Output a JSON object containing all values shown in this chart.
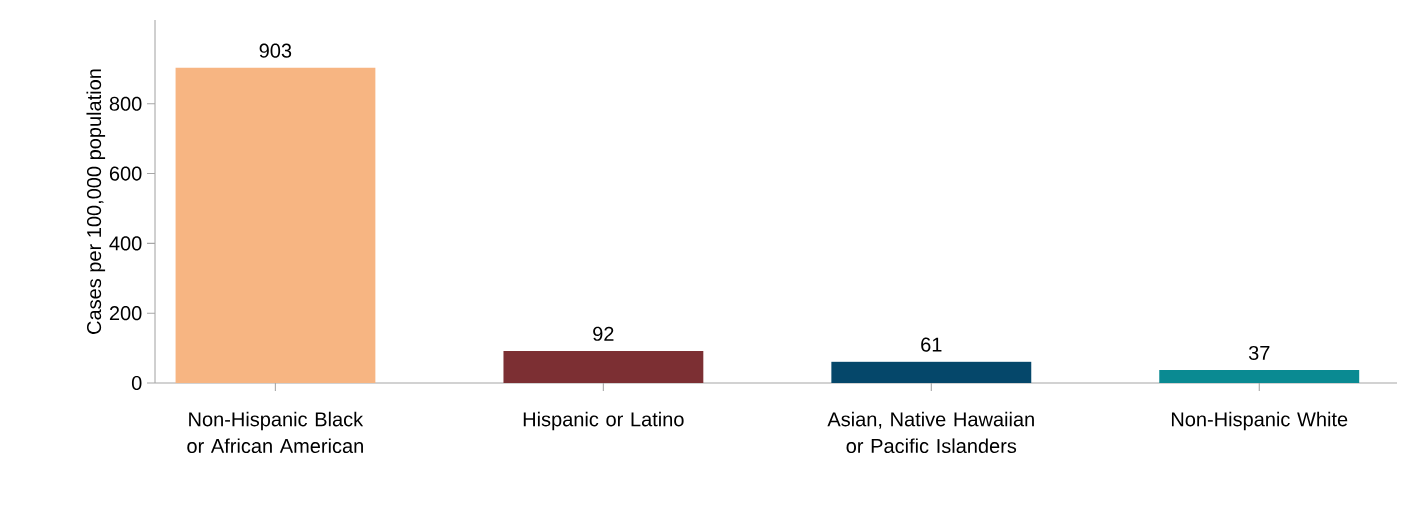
{
  "chart_data": {
    "type": "bar",
    "ylabel": "Cases per 100,000 population",
    "categories": [
      "Non-Hispanic Black or African American",
      "Hispanic or Latino",
      "Asian, Native Hawaiian or Pacific Islanders",
      "Non-Hispanic White"
    ],
    "values": [
      903,
      92,
      61,
      37
    ],
    "colors": [
      "#f7b582",
      "#7c2f33",
      "#05476a",
      "#0a8a92"
    ],
    "ylim": [
      0,
      1040
    ],
    "yticks": [
      0,
      200,
      400,
      600,
      800
    ],
    "data_labels": true,
    "grid": false
  }
}
